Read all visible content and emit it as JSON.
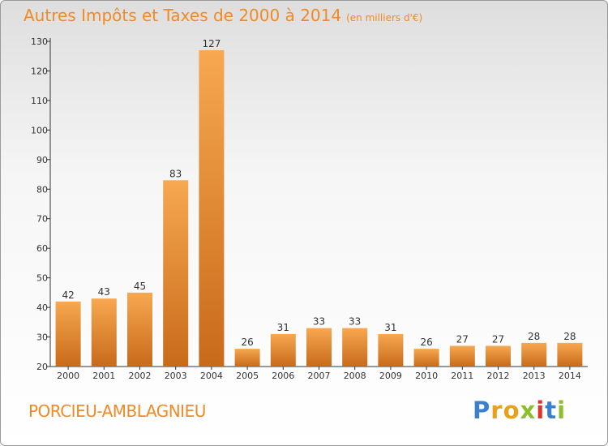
{
  "title": "Autres Impôts et Taxes de 2000 à 2014",
  "unit": "(en milliers d'€)",
  "place": "PORCIEU-AMBLAGNIEU",
  "logo": {
    "text": "Proxiti",
    "letter_colors": [
      "#3b7fd0",
      "#e8a21a",
      "#e8a21a",
      "#8cbf2a",
      "#e0342a",
      "#3b7fd0",
      "#8cbf2a"
    ]
  },
  "colors": {
    "accent": "#f08a26",
    "bar_top": "#f7a850",
    "bar_bottom": "#c86a1a"
  },
  "chart_data": {
    "type": "bar",
    "title": "Autres Impôts et Taxes de 2000 à 2014",
    "subtitle": "(en milliers d'€)",
    "xlabel": "",
    "ylabel": "",
    "categories": [
      "2000",
      "2001",
      "2002",
      "2003",
      "2004",
      "2005",
      "2006",
      "2007",
      "2008",
      "2009",
      "2010",
      "2011",
      "2012",
      "2013",
      "2014"
    ],
    "values": [
      42,
      43,
      45,
      83,
      127,
      26,
      31,
      33,
      33,
      31,
      26,
      27,
      27,
      28,
      28
    ],
    "ylim": [
      20,
      130
    ],
    "yticks": [
      20,
      30,
      40,
      50,
      60,
      70,
      80,
      90,
      100,
      110,
      120,
      130
    ],
    "grid": false,
    "legend": "none"
  }
}
